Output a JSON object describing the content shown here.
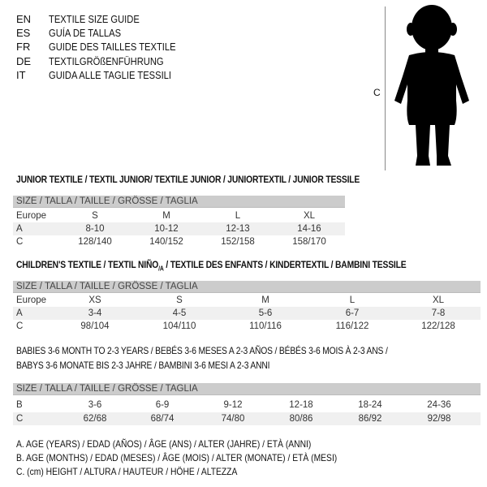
{
  "intro": [
    {
      "code": "EN",
      "text": "TEXTILE SIZE GUIDE"
    },
    {
      "code": "ES",
      "text": "GUÍA DE TALLAS"
    },
    {
      "code": "FR",
      "text": "GUIDE DES TAILLES TEXTILE"
    },
    {
      "code": "DE",
      "text": "TEXTILGRÖßENFÜHRUNG"
    },
    {
      "code": "IT",
      "text": "GUIDA ALLE TAGLIE TESSILI"
    }
  ],
  "figure": {
    "label": "C",
    "icon": "child-silhouette"
  },
  "header_label": "SIZE / TALLA / TAILLE / GRÖSSE / TAGLIA",
  "junior": {
    "title": "JUNIOR TEXTILE / TEXTIL JUNIOR/ TEXTILE JUNIOR / JUNIORTEXTIL / JUNIOR TESSILE",
    "rows": [
      {
        "label": "Europe",
        "cells": [
          "S",
          "M",
          "L",
          "XL"
        ]
      },
      {
        "label": "A",
        "cells": [
          "8-10",
          "10-12",
          "12-13",
          "14-16"
        ]
      },
      {
        "label": "C",
        "cells": [
          "128/140",
          "140/152",
          "152/158",
          "158/170"
        ]
      }
    ]
  },
  "children": {
    "title_a": "CHILDREN'S TEXTILE / TEXTIL NIÑO",
    "title_sub": "/A",
    "title_b": " / TEXTILE DES ENFANTS / KINDERTEXTIL / BAMBINI TESSILE",
    "rows": [
      {
        "label": "Europe",
        "cells": [
          "XS",
          "S",
          "M",
          "L",
          "XL"
        ]
      },
      {
        "label": "A",
        "cells": [
          "3-4",
          "4-5",
          "5-6",
          "6-7",
          "7-8"
        ]
      },
      {
        "label": "C",
        "cells": [
          "98/104",
          "104/110",
          "110/116",
          "116/122",
          "122/128"
        ]
      }
    ]
  },
  "babies": {
    "title_line1": "BABIES 3-6 MONTH TO 2-3 YEARS / BEBÉS 3-6 MESES A 2-3 AÑOS / BÉBÉS 3-6 MOIS À 2-3 ANS /",
    "title_line2": "BABYS 3-6 MONATE BIS 2-3 JAHRE / BAMBINI 3-6 MESI A 2-3 ANNI",
    "rows": [
      {
        "label": "B",
        "cells": [
          "3-6",
          "6-9",
          "9-12",
          "12-18",
          "18-24",
          "24-36"
        ]
      },
      {
        "label": "C",
        "cells": [
          "62/68",
          "68/74",
          "74/80",
          "80/86",
          "86/92",
          "92/98"
        ]
      }
    ]
  },
  "legend": [
    "A. AGE (YEARS) / EDAD (AÑOS) / ÂGE (ANS) / ALTER (JAHRE) / ETÀ (ANNI)",
    "B. AGE (MONTHS) / EDAD (MESES) / ÂGE (MOIS) / ALTER (MONATE) / ETÀ (MESI)",
    "C. (cm) HEIGHT / ALTURA / HAUTEUR / HÖHE / ALTEZZA"
  ]
}
